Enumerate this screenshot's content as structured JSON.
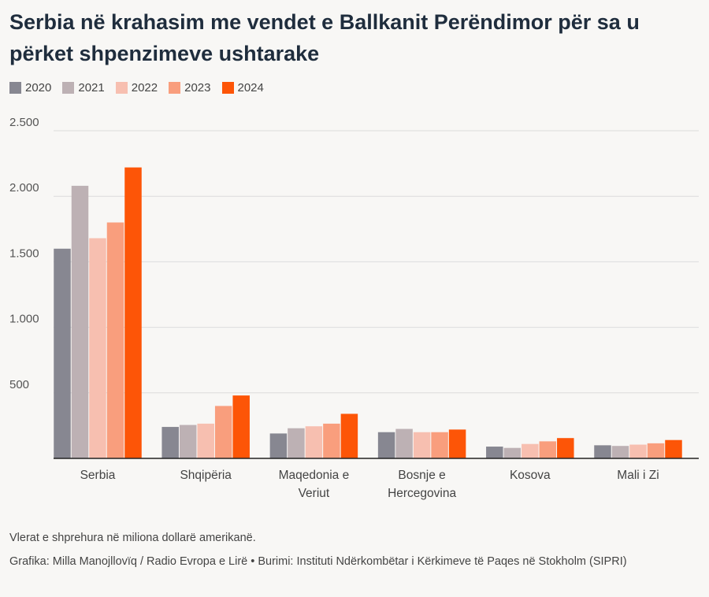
{
  "chart_data": {
    "type": "bar",
    "title": "Serbia në krahasim me vendet e Ballkanit Perëndimor për sa u përket shpenzimeve ushtarake",
    "categories": [
      [
        "Serbia"
      ],
      [
        "Shqipëria"
      ],
      [
        "Maqedonia e",
        "Veriut"
      ],
      [
        "Bosnje e",
        "Hercegovina"
      ],
      [
        "Kosova"
      ],
      [
        "Mali i Zi"
      ]
    ],
    "series": [
      {
        "name": "2020",
        "color": "#878791",
        "values": [
          1600,
          240,
          190,
          200,
          90,
          100
        ]
      },
      {
        "name": "2021",
        "color": "#bdb1b4",
        "values": [
          2080,
          255,
          230,
          225,
          80,
          95
        ]
      },
      {
        "name": "2022",
        "color": "#f7bfb0",
        "values": [
          1680,
          265,
          245,
          200,
          110,
          105
        ]
      },
      {
        "name": "2023",
        "color": "#f99e7d",
        "values": [
          1800,
          400,
          265,
          200,
          130,
          115
        ]
      },
      {
        "name": "2024",
        "color": "#fd5507",
        "values": [
          2220,
          480,
          340,
          220,
          155,
          140
        ]
      }
    ],
    "ylim": [
      0,
      2500
    ],
    "yticks": [
      {
        "value": 500,
        "label": "500"
      },
      {
        "value": 1000,
        "label": "1.000"
      },
      {
        "value": 1500,
        "label": "1.500"
      },
      {
        "value": 2000,
        "label": "2.000"
      },
      {
        "value": 2500,
        "label": "2.500"
      }
    ],
    "xlabel": "",
    "ylabel": "",
    "grid": true,
    "legend_position": "top-left"
  },
  "footer": {
    "note": "Vlerat e shprehura në miliona dollarë amerikanë.",
    "credit": "Grafika: Milla Manojllovïq / Radio Evropa e Lirë • Burimi: Instituti Ndërkombëtar i Kërkimeve të Paqes në Stokholm (SIPRI)"
  }
}
